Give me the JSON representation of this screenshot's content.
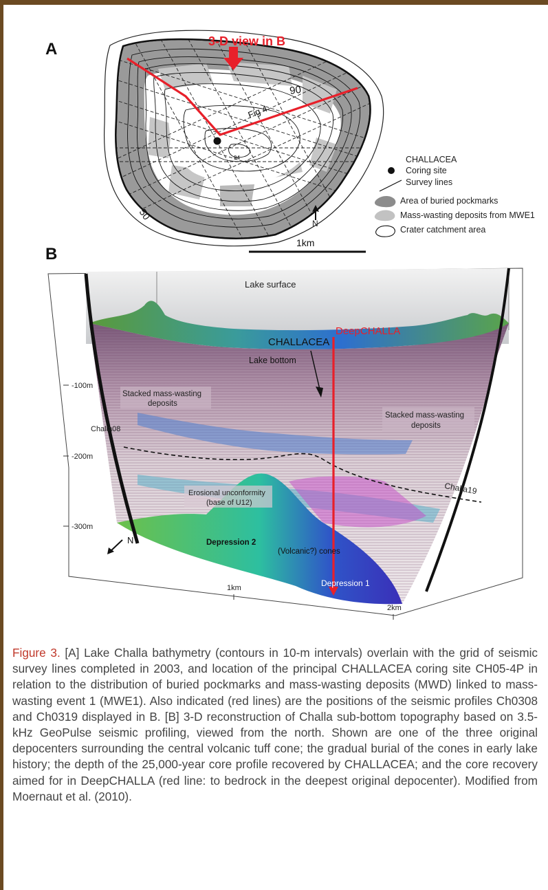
{
  "panel_a": {
    "label": "A",
    "view_label": "3-D view in B",
    "contour_90": "90",
    "contour_50": "50",
    "contour_small": "94",
    "fig_label": "Fig 4",
    "legend": {
      "challacea": "CHALLACEA",
      "coring_site": "Coring site",
      "survey_lines": "Survey lines",
      "pockmarks": "Area of buried pockmarks",
      "mass_wasting": "Mass-wasting deposits from MWE1",
      "catchment": "Crater catchment area"
    },
    "north": "N",
    "scale": "1km"
  },
  "panel_b": {
    "label": "B",
    "lake_surface": "Lake surface",
    "challacea": "CHALLACEA",
    "deepchalla": "DeepCHALLA",
    "lake_bottom": "Lake bottom",
    "stacked_left_1": "Stacked mass-wasting",
    "stacked_left_2": "deposits",
    "stacked_right_1": "Stacked mass-wasting",
    "stacked_right_2": "deposits",
    "challa08": "Challa08",
    "challa19": "Challa19",
    "erosional_1": "Erosional unconformity",
    "erosional_2": "(base of U12)",
    "depression2": "Depression 2",
    "cones": "(Volcanic?) cones",
    "depression1": "Depression 1",
    "north": "N",
    "depth_100": "-100m",
    "depth_200": "-200m",
    "depth_300": "-300m",
    "dist_1km": "1km",
    "dist_2km": "2km"
  },
  "caption": {
    "label": "Figure 3.",
    "text": "[A] Lake Challa bathymetry (contours in 10-m intervals) overlain with the grid of seismic survey lines completed in 2003, and location of the principal CHALLACEA coring site CH05-4P in relation to the distribution of buried pockmarks and mass-wasting deposits (MWD) linked to mass-wasting event 1 (MWE1). Also indicated (red lines) are the positions of the seismic profiles Ch0308 and Ch0319 displayed in B. [B] 3-D reconstruction of Challa sub-bottom topography based on 3.5-kHz GeoPulse seismic profiling, viewed from the north. Shown are one of the three original depocenters surrounding the central volcanic tuff cone; the gradual burial of the cones in early lake history; the depth of the 25,000-year core profile recovered by CHALLACEA; and the core recovery aimed for in DeepCHALLA (red line: to bedrock in the deepest original depocenter). Modified from Moernaut et al. (2010)."
  },
  "colors": {
    "frame": "#6b4a22",
    "accent_red": "#e8202a",
    "caption_label": "#c0392b"
  }
}
